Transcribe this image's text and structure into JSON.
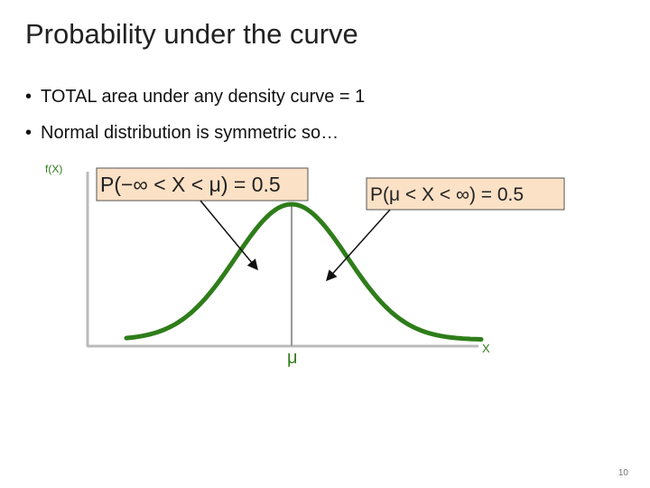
{
  "title": "Probability under the curve",
  "bullets": [
    "TOTAL area under any density curve = 1",
    "Normal distribution is symmetric so…"
  ],
  "figure": {
    "y_label": "f(X)",
    "x_label": "X",
    "mean_label": "μ",
    "left_box": "P(−∞ < X < μ) = 0.5",
    "right_box": "P(μ < X < ∞) = 0.5"
  },
  "page_number": 10
}
